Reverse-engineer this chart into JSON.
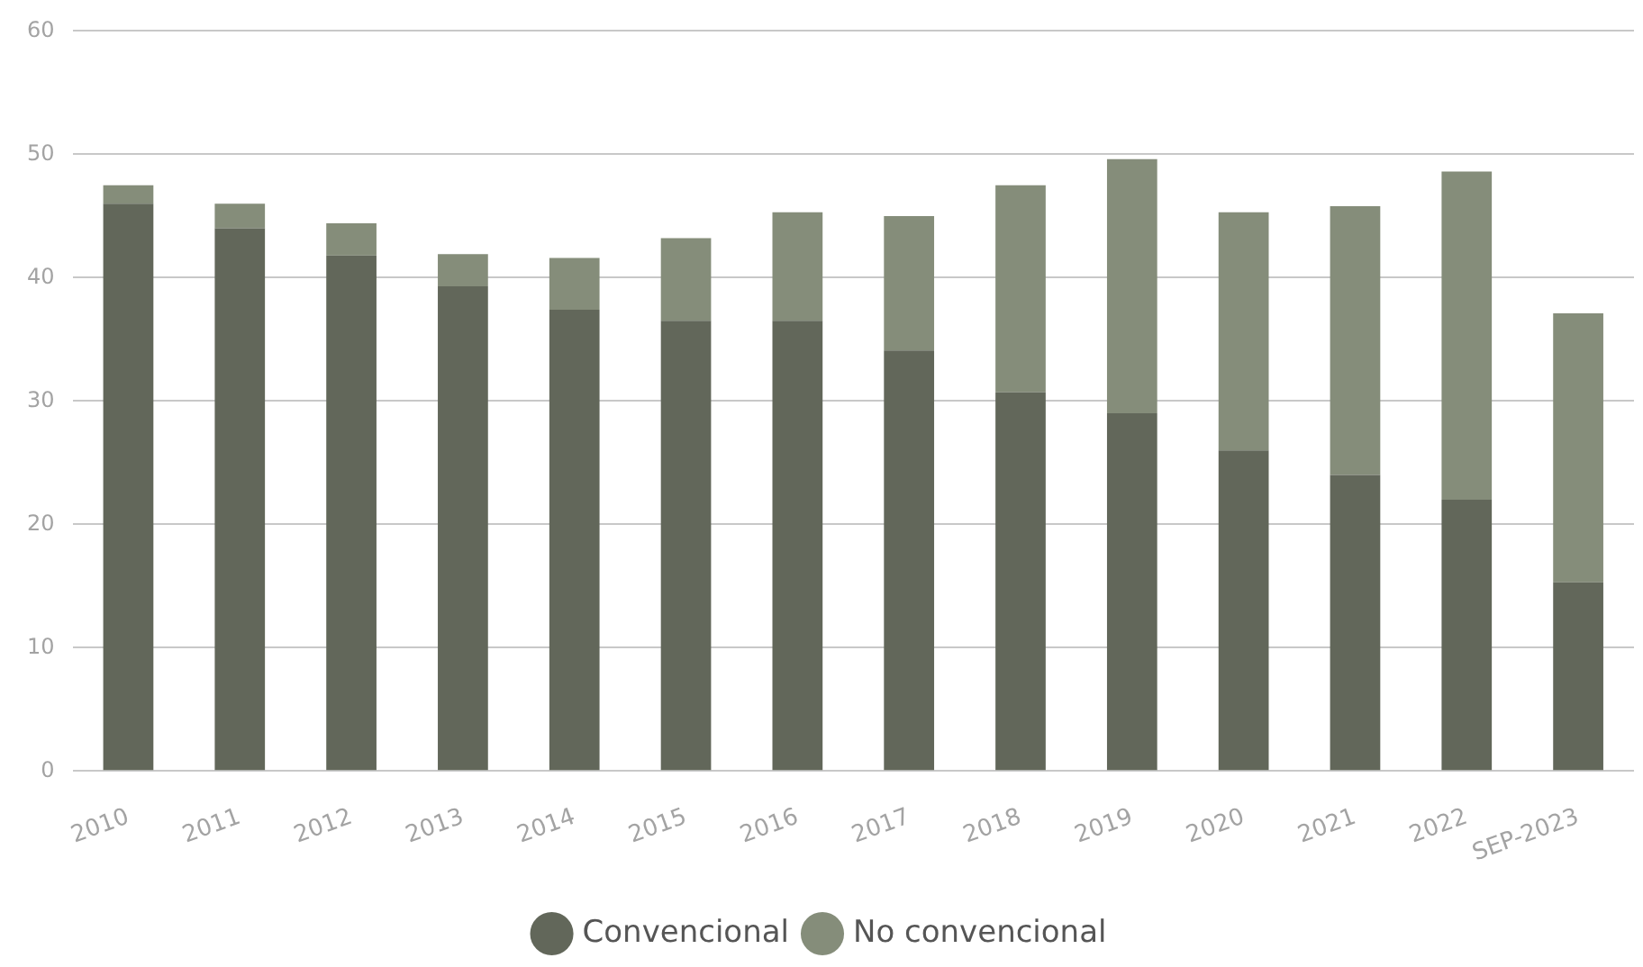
{
  "chart_data": {
    "type": "bar",
    "stacked": true,
    "categories": [
      "2010",
      "2011",
      "2012",
      "2013",
      "2014",
      "2015",
      "2016",
      "2017",
      "2018",
      "2019",
      "2020",
      "2021",
      "2022",
      "SEP-2023"
    ],
    "series": [
      {
        "name": "Convencional",
        "color": "#62675a",
        "values": [
          46.0,
          44.0,
          41.8,
          39.3,
          37.4,
          36.5,
          36.5,
          34.1,
          30.7,
          29.0,
          26.0,
          24.0,
          22.0,
          15.3
        ]
      },
      {
        "name": "No convencional",
        "color": "#858d7a",
        "values": [
          1.5,
          2.0,
          2.6,
          2.6,
          4.2,
          6.7,
          8.8,
          10.9,
          16.8,
          20.6,
          19.3,
          21.8,
          26.6,
          21.8
        ]
      }
    ],
    "ylim": [
      0,
      60
    ],
    "yticks": [
      0,
      10,
      20,
      30,
      40,
      50,
      60
    ],
    "grid": "y",
    "legend": "bottom"
  }
}
